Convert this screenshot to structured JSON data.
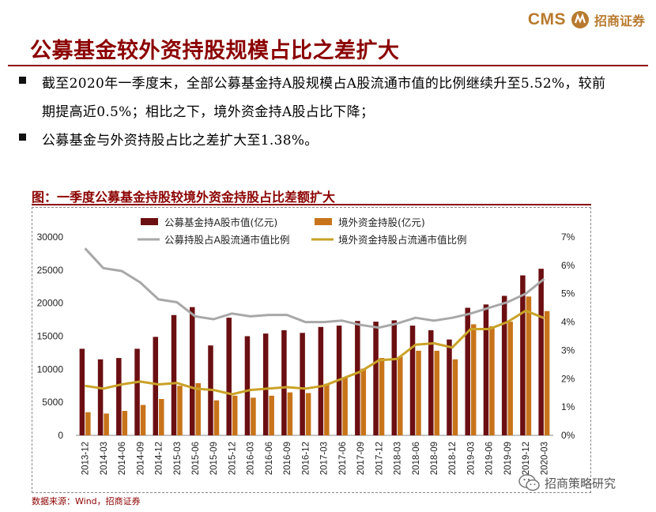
{
  "brand": {
    "abbr": "CMS",
    "name": "招商证券"
  },
  "title": "公募基金较外资持股规模占比之差扩大",
  "bullets": [
    "截至2020年一季度末，全部公募基金持A股规模占A股流通市值的比例继续升至5.52%，较前期提高近0.5%；相比之下，境外资金持A股占比下降；",
    "公募基金与外资持股占比之差扩大至1.38%。"
  ],
  "chart_title": "图：一季度公募基金持股较境外资金持股占比差额扩大",
  "source": "数据来源：Wind，招商证券",
  "watermark": "招商策略研究",
  "colors": {
    "fund_bar": "#6b0f12",
    "foreign_bar": "#c8741a",
    "fund_line": "#a8a8a8",
    "foreign_line": "#c9a227",
    "title": "#8b0000"
  },
  "chart_data": {
    "type": "bar",
    "categories": [
      "2013-12",
      "2014-03",
      "2014-06",
      "2014-09",
      "2014-12",
      "2015-03",
      "2015-06",
      "2015-09",
      "2015-12",
      "2016-03",
      "2016-06",
      "2016-09",
      "2016-12",
      "2017-03",
      "2017-06",
      "2017-09",
      "2017-12",
      "2018-03",
      "2018-06",
      "2018-09",
      "2018-12",
      "2019-03",
      "2019-06",
      "2019-09",
      "2019-12",
      "2020-03"
    ],
    "left_axis": {
      "min": 0,
      "max": 30000,
      "step": 5000,
      "ticks": [
        "0",
        "5000",
        "10000",
        "15000",
        "20000",
        "25000",
        "30000"
      ]
    },
    "right_axis": {
      "min": 0,
      "max": 7,
      "step": 1,
      "ticks": [
        "0%",
        "1%",
        "2%",
        "3%",
        "4%",
        "5%",
        "6%",
        "7%"
      ]
    },
    "series": [
      {
        "name": "公募基金持A股市值(亿元)",
        "type": "bar",
        "axis": "left",
        "values": [
          13100,
          11500,
          11700,
          13100,
          14900,
          18200,
          19400,
          13600,
          17800,
          15000,
          15400,
          15900,
          15500,
          16400,
          16600,
          17300,
          17200,
          17400,
          16600,
          15900,
          14500,
          19300,
          19800,
          21100,
          24200,
          25200
        ]
      },
      {
        "name": "境外资金持股(亿元)",
        "type": "bar",
        "axis": "left",
        "values": [
          3500,
          3300,
          3700,
          4600,
          5500,
          7500,
          7900,
          5300,
          6000,
          5700,
          6000,
          6500,
          6400,
          7800,
          8800,
          10100,
          11700,
          11900,
          12800,
          12800,
          11500,
          16800,
          16500,
          17200,
          21000,
          18800
        ]
      },
      {
        "name": "公募持股占A股流通市值比例",
        "type": "line",
        "axis": "right",
        "values": [
          6.6,
          5.9,
          5.8,
          5.4,
          4.8,
          4.7,
          4.2,
          4.1,
          4.3,
          4.2,
          4.25,
          4.25,
          4.0,
          4.0,
          4.05,
          3.9,
          3.8,
          3.95,
          4.15,
          4.05,
          4.15,
          4.3,
          4.5,
          4.7,
          5.0,
          5.52
        ]
      },
      {
        "name": "境外资金持股占流通市值比例",
        "type": "line",
        "axis": "right",
        "values": [
          1.75,
          1.65,
          1.8,
          1.9,
          1.8,
          1.85,
          1.65,
          1.6,
          1.45,
          1.6,
          1.65,
          1.7,
          1.65,
          1.75,
          2.0,
          2.25,
          2.65,
          2.7,
          3.2,
          3.25,
          3.1,
          3.75,
          3.75,
          4.0,
          4.4,
          4.14
        ]
      }
    ]
  }
}
